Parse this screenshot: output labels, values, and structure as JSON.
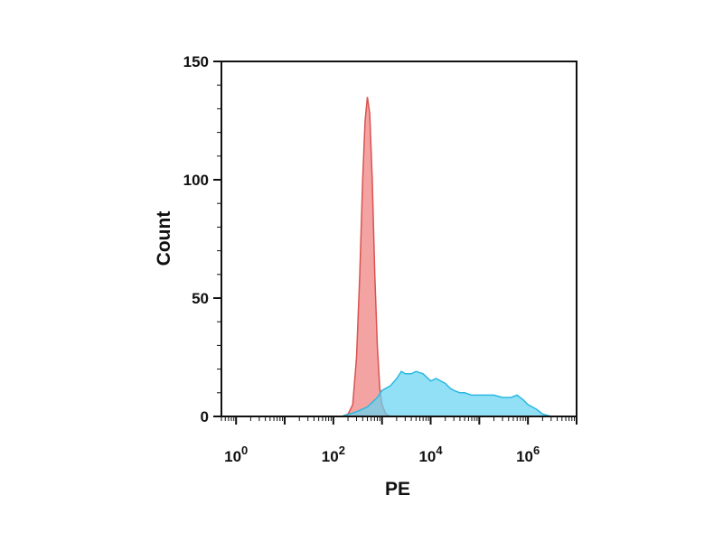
{
  "chart_data": {
    "type": "area",
    "xlabel": "PE",
    "ylabel": "Count",
    "x_scale": "log",
    "xlim": [
      0.5,
      10000000
    ],
    "ylim": [
      0,
      150
    ],
    "grid": false,
    "x_ticks": [
      {
        "value": 1,
        "base": "10",
        "exp": "0"
      },
      {
        "value": 100,
        "base": "10",
        "exp": "2"
      },
      {
        "value": 10000,
        "base": "10",
        "exp": "4"
      },
      {
        "value": 1000000,
        "base": "10",
        "exp": "6"
      }
    ],
    "y_ticks": [
      {
        "value": 0,
        "label": "0"
      },
      {
        "value": 50,
        "label": "50"
      },
      {
        "value": 100,
        "label": "100"
      },
      {
        "value": 150,
        "label": "150"
      }
    ],
    "series": [
      {
        "color": "#f08080",
        "stroke": "#d9534f",
        "points": [
          [
            0.5,
            0
          ],
          [
            150,
            0
          ],
          [
            200,
            1
          ],
          [
            250,
            5
          ],
          [
            300,
            25
          ],
          [
            350,
            60
          ],
          [
            400,
            100
          ],
          [
            450,
            125
          ],
          [
            500,
            135
          ],
          [
            560,
            128
          ],
          [
            630,
            100
          ],
          [
            710,
            60
          ],
          [
            800,
            30
          ],
          [
            900,
            12
          ],
          [
            1000,
            5
          ],
          [
            1200,
            1
          ],
          [
            1500,
            0
          ],
          [
            10000000,
            0
          ]
        ]
      },
      {
        "color": "#67d4f2",
        "stroke": "#2bb8e0",
        "points": [
          [
            0.5,
            0
          ],
          [
            150,
            0
          ],
          [
            300,
            2
          ],
          [
            500,
            4
          ],
          [
            800,
            8
          ],
          [
            1000,
            11
          ],
          [
            1500,
            13
          ],
          [
            2000,
            16
          ],
          [
            2500,
            19
          ],
          [
            3000,
            18
          ],
          [
            4000,
            18
          ],
          [
            5000,
            19
          ],
          [
            7000,
            18
          ],
          [
            10000,
            15
          ],
          [
            13000,
            16
          ],
          [
            20000,
            14
          ],
          [
            25000,
            12
          ],
          [
            30000,
            11
          ],
          [
            40000,
            10
          ],
          [
            50000,
            10
          ],
          [
            70000,
            9
          ],
          [
            100000,
            9
          ],
          [
            150000,
            9
          ],
          [
            200000,
            9
          ],
          [
            300000,
            8
          ],
          [
            450000,
            8
          ],
          [
            600000,
            9
          ],
          [
            800000,
            7
          ],
          [
            1000000,
            5
          ],
          [
            1500000,
            3
          ],
          [
            2000000,
            1
          ],
          [
            3000000,
            0
          ],
          [
            10000000,
            0
          ]
        ]
      }
    ]
  }
}
